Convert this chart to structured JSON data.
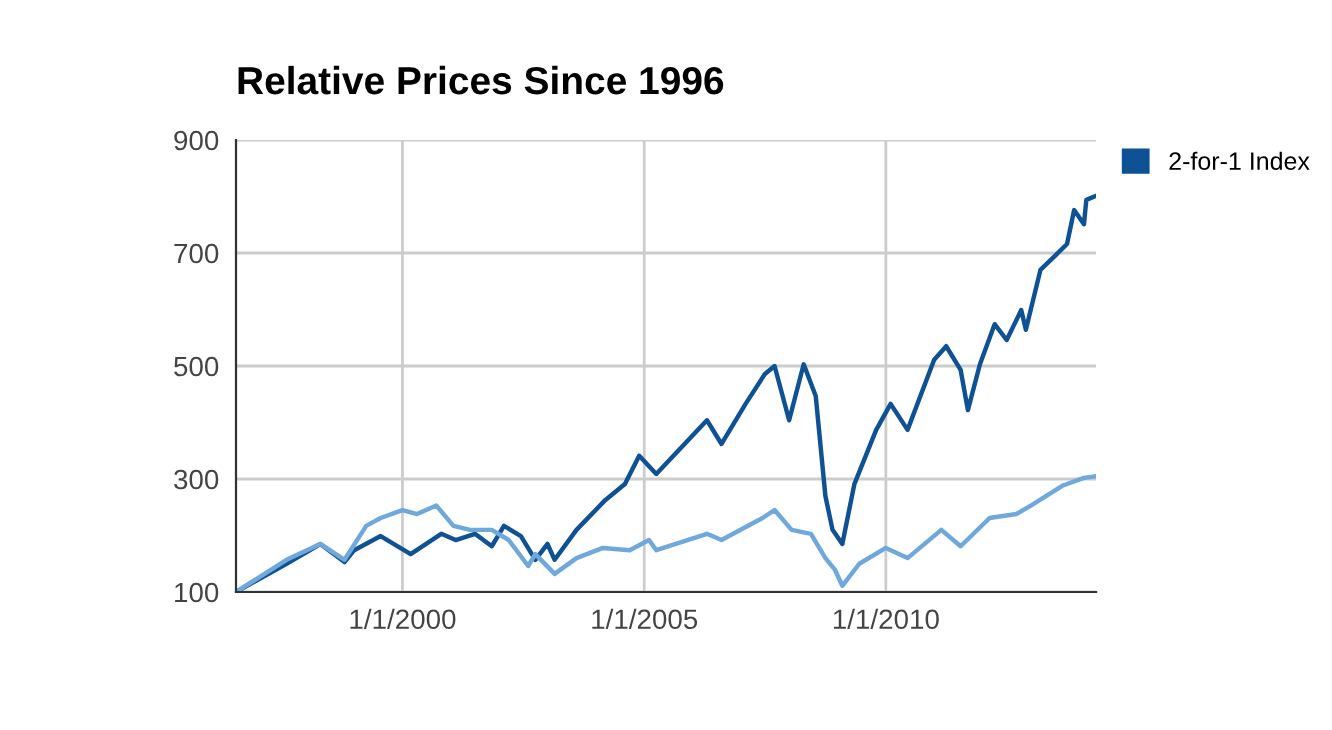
{
  "chart_data": {
    "type": "line",
    "title": "Relative Prices Since 1996",
    "xlim": [
      "1996-07-22",
      "2014-05-08"
    ],
    "xticks": [
      {
        "value": "2000-01-01",
        "label": "1/1/2000"
      },
      {
        "value": "2005-01-01",
        "label": "1/1/2005"
      },
      {
        "value": "2010-01-01",
        "label": "1/1/2010"
      }
    ],
    "ylim": [
      100,
      900
    ],
    "yticks": [
      100,
      300,
      500,
      700,
      900
    ],
    "grid": true,
    "legend": "right",
    "marker": "none",
    "line_style": "solid",
    "series": [
      {
        "name": "2-for-1 Index",
        "color": "#0e5195",
        "x": [
          "1996-07-22",
          "1997-08-08",
          "1998-04-20",
          "1998-10-20",
          "1999-01-01",
          "1999-07-20",
          "2000-03-03",
          "2000-10-20",
          "2001-02-06",
          "2001-07-02",
          "2001-11-06",
          "2002-02-06",
          "2002-06-14",
          "2002-10-01",
          "2003-01-01",
          "2003-02-24",
          "2003-08-08",
          "2004-03-14",
          "2004-08-08",
          "2004-11-24",
          "2005-04-02",
          "2006-04-20",
          "2006-08-08",
          "2007-02-06",
          "2007-07-02",
          "2007-09-13",
          "2008-01-01",
          "2008-04-20",
          "2008-07-20",
          "2008-10-01",
          "2008-11-24",
          "2009-02-06",
          "2009-05-08",
          "2009-10-20",
          "2010-02-06",
          "2010-06-14",
          "2011-01-01",
          "2011-04-02",
          "2011-07-20",
          "2011-09-13",
          "2011-12-13",
          "2012-04-02",
          "2012-07-02",
          "2012-10-20",
          "2012-11-24",
          "2013-03-14",
          "2013-07-02",
          "2013-10-01",
          "2013-11-24",
          "2014-02-06",
          "2014-02-24",
          "2014-05-08"
        ],
        "values": [
          100,
          150,
          185,
          153,
          174,
          199,
          167,
          203,
          192,
          203,
          181,
          217,
          199,
          157,
          185,
          157,
          210,
          263,
          291,
          341,
          309,
          404,
          362,
          433,
          486,
          500,
          404,
          503,
          447,
          270,
          210,
          185,
          291,
          387,
          433,
          387,
          511,
          535,
          493,
          422,
          503,
          574,
          546,
          599,
          564,
          670,
          695,
          716,
          776,
          751,
          794,
          801
        ]
      },
      {
        "color": "#6fa8dc",
        "x": [
          "1996-07-22",
          "1997-08-08",
          "1998-04-20",
          "1998-10-20",
          "1999-04-02",
          "1999-07-20",
          "2000-01-01",
          "2000-04-20",
          "2000-09-13",
          "2001-01-20",
          "2001-05-26",
          "2001-11-06",
          "2002-03-14",
          "2002-08-08",
          "2002-10-01",
          "2003-02-24",
          "2003-08-08",
          "2004-02-24",
          "2004-09-13",
          "2005-02-06",
          "2005-04-02",
          "2006-04-20",
          "2006-08-08",
          "2007-06-14",
          "2007-09-13",
          "2008-01-20",
          "2008-06-14",
          "2008-10-01",
          "2008-12-13",
          "2009-02-06",
          "2009-06-14",
          "2010-01-01",
          "2010-06-14",
          "2011-02-24",
          "2011-07-20",
          "2012-02-24",
          "2012-09-13",
          "2013-01-01",
          "2013-08-26",
          "2014-02-06",
          "2014-05-08"
        ],
        "values": [
          100,
          157,
          185,
          157,
          217,
          231,
          245,
          238,
          253,
          217,
          210,
          210,
          192,
          146,
          167,
          132,
          160,
          178,
          174,
          192,
          174,
          203,
          192,
          231,
          245,
          210,
          203,
          160,
          139,
          111,
          150,
          178,
          160,
          210,
          181,
          231,
          238,
          253,
          288,
          302,
          305
        ]
      }
    ]
  }
}
